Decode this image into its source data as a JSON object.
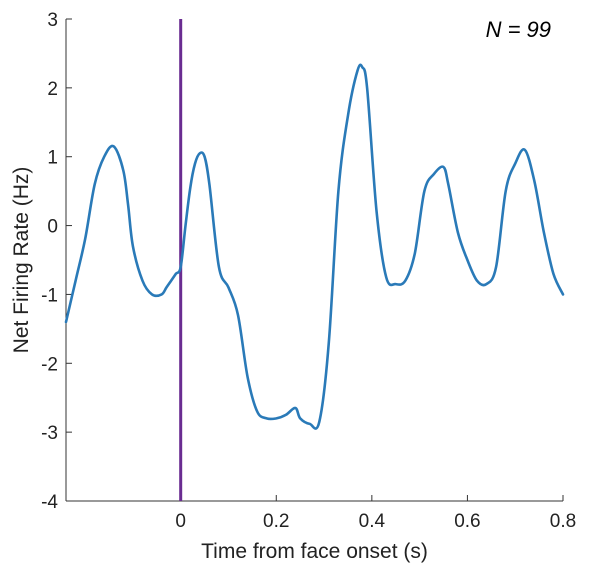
{
  "chart_data": {
    "type": "line",
    "title": "",
    "xlabel": "Time from face onset (s)",
    "ylabel": "Net Firing Rate (Hz)",
    "xlim": [
      -0.24,
      0.8
    ],
    "ylim": [
      -4,
      3
    ],
    "x_ticks": [
      0,
      0.2,
      0.4,
      0.6,
      0.8
    ],
    "x_tick_labels": [
      "0",
      "0.2",
      "0.4",
      "0.6",
      "0.8"
    ],
    "y_ticks": [
      -4,
      -3,
      -2,
      -1,
      0,
      1,
      2,
      3
    ],
    "y_tick_labels": [
      "-4",
      "-3",
      "-2",
      "-1",
      "0",
      "1",
      "2",
      "3"
    ],
    "grid": false,
    "annotation": "N = 99",
    "onset_line_x": 0,
    "onset_line_color": "#6a2c91",
    "series": [
      {
        "color": "#2a7ab8",
        "x": [
          -0.24,
          -0.22,
          -0.2,
          -0.18,
          -0.16,
          -0.14,
          -0.12,
          -0.11,
          -0.1,
          -0.08,
          -0.06,
          -0.04,
          -0.03,
          -0.02,
          -0.01,
          0,
          0.01,
          0.02,
          0.03,
          0.04,
          0.05,
          0.06,
          0.08,
          0.1,
          0.12,
          0.14,
          0.16,
          0.18,
          0.2,
          0.22,
          0.24,
          0.25,
          0.27,
          0.29,
          0.31,
          0.33,
          0.35,
          0.37,
          0.38,
          0.39,
          0.41,
          0.43,
          0.45,
          0.47,
          0.49,
          0.51,
          0.53,
          0.55,
          0.56,
          0.58,
          0.6,
          0.62,
          0.64,
          0.66,
          0.68,
          0.7,
          0.72,
          0.74,
          0.76,
          0.78,
          0.8
        ],
        "y": [
          -1.4,
          -0.8,
          -0.2,
          0.6,
          1.0,
          1.15,
          0.8,
          0.3,
          -0.3,
          -0.8,
          -1.0,
          -1.0,
          -0.9,
          -0.8,
          -0.7,
          -0.6,
          0.0,
          0.55,
          0.9,
          1.05,
          1.0,
          0.6,
          -0.6,
          -0.9,
          -1.3,
          -2.2,
          -2.7,
          -2.8,
          -2.8,
          -2.75,
          -2.65,
          -2.8,
          -2.88,
          -2.85,
          -1.7,
          0.5,
          1.6,
          2.25,
          2.3,
          2.0,
          0.2,
          -0.75,
          -0.85,
          -0.8,
          -0.4,
          0.5,
          0.75,
          0.85,
          0.6,
          -0.1,
          -0.5,
          -0.8,
          -0.85,
          -0.6,
          0.5,
          0.9,
          1.1,
          0.65,
          -0.1,
          -0.7,
          -1.0
        ]
      }
    ]
  }
}
